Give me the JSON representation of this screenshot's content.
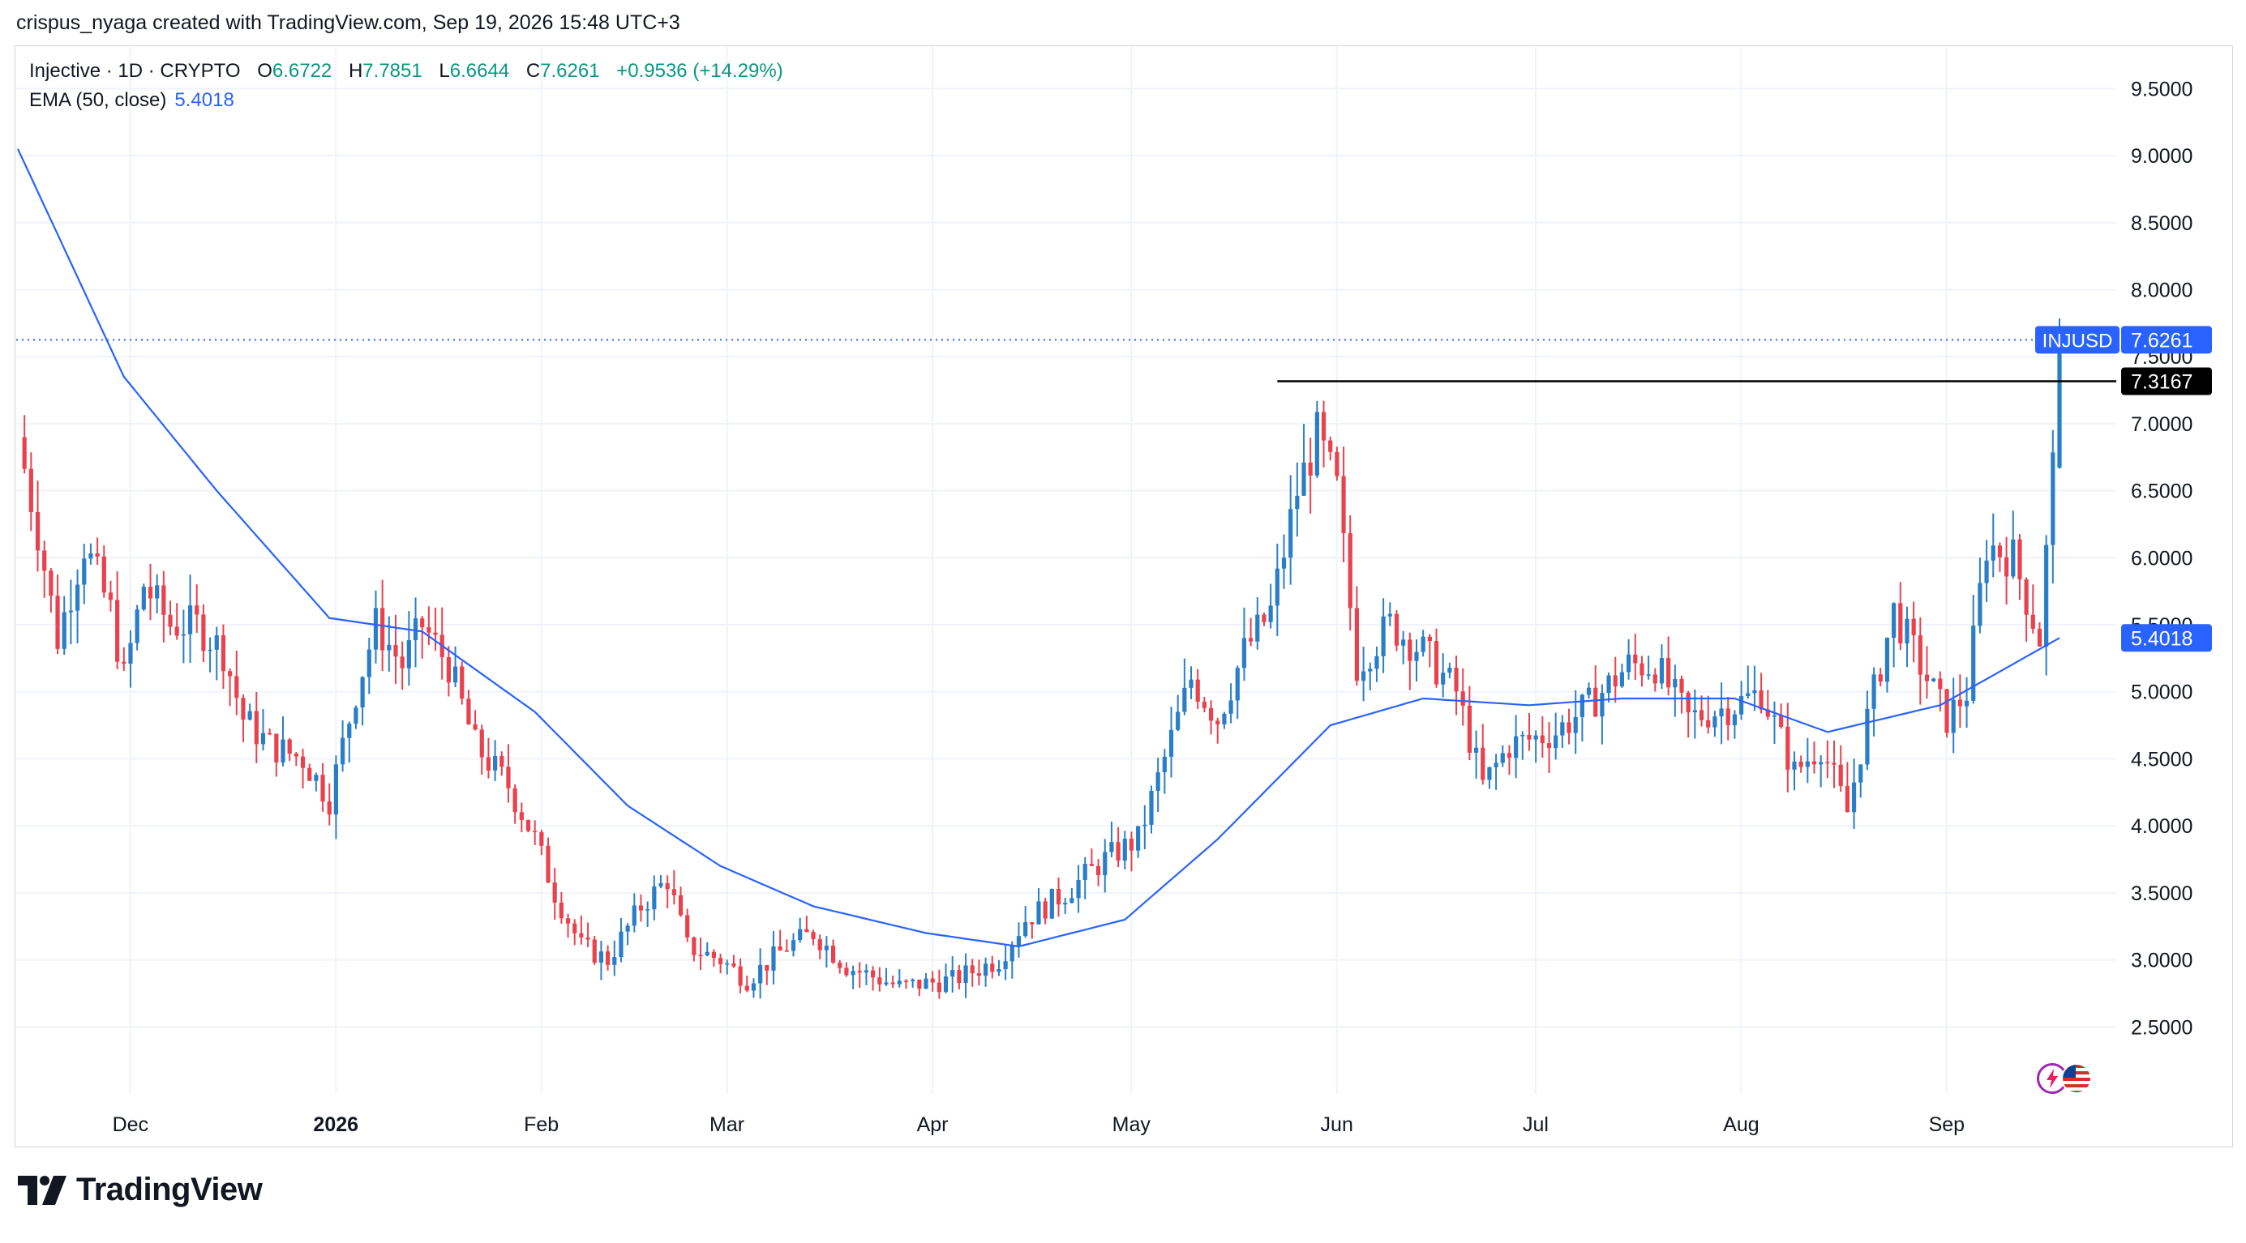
{
  "attribution": "crispus_nyaga created with TradingView.com, Sep 19, 2026 15:48 UTC+3",
  "legend": {
    "symbol": "Injective · 1D · CRYPTO",
    "open_label": "O",
    "open": "6.6722",
    "high_label": "H",
    "high": "7.7851",
    "low_label": "L",
    "low": "6.6644",
    "close_label": "C",
    "close": "7.6261",
    "change": "+0.9536 (+14.29%)",
    "ema_label": "EMA (50, close)",
    "ema_value": "5.4018"
  },
  "footer": {
    "brand": "TradingView"
  },
  "icons": [
    "tradingview-logo-icon",
    "lightning-icon",
    "us-flag-icon"
  ],
  "colors": {
    "up": "#2a7ec8",
    "down": "#e8424e",
    "ema": "#2962ff",
    "price_tag": "#2962ff",
    "level": "#000000",
    "grid": "#f0f3fa"
  },
  "chart_data": {
    "type": "candlestick",
    "symbol": "INJUSD",
    "interval": "1D",
    "y_axis_labels": [
      "9.5000",
      "9.0000",
      "8.5000",
      "8.0000",
      "7.5000",
      "7.0000",
      "6.5000",
      "6.0000",
      "5.5000",
      "5.0000",
      "4.5000",
      "4.0000",
      "3.5000",
      "3.0000",
      "2.5000"
    ],
    "ylim": [
      2.0,
      9.75
    ],
    "x_axis_labels": [
      "Dec",
      "2026",
      "Feb",
      "Mar",
      "Apr",
      "May",
      "Jun",
      "Jul",
      "Aug",
      "Sep"
    ],
    "x_range": [
      "2025-11-15",
      "2026-09-19"
    ],
    "grid": true,
    "last_price": {
      "label": "INJUSD",
      "value": 7.6261,
      "text": "7.6261"
    },
    "ema": {
      "name": "EMA (50, close)",
      "value": 5.4018,
      "text": "5.4018"
    },
    "horizontal_level": {
      "value": 7.3167,
      "text": "7.3167",
      "from_date": "2026-05-24"
    },
    "approx_path": [
      [
        "2025-11-15",
        6.9
      ],
      [
        "2025-11-18",
        6.2
      ],
      [
        "2025-11-21",
        5.4
      ],
      [
        "2025-11-25",
        6.1
      ],
      [
        "2025-11-29",
        5.6
      ],
      [
        "2025-12-01",
        5.1
      ],
      [
        "2025-12-04",
        5.8
      ],
      [
        "2025-12-08",
        5.5
      ],
      [
        "2025-12-12",
        5.5
      ],
      [
        "2025-12-16",
        5.3
      ],
      [
        "2025-12-19",
        4.8
      ],
      [
        "2025-12-23",
        4.6
      ],
      [
        "2025-12-28",
        4.5
      ],
      [
        "2026-01-01",
        4.2
      ],
      [
        "2026-01-05",
        5.0
      ],
      [
        "2026-01-08",
        5.5
      ],
      [
        "2026-01-12",
        5.2
      ],
      [
        "2026-01-15",
        5.5
      ],
      [
        "2026-01-19",
        5.2
      ],
      [
        "2026-01-23",
        4.6
      ],
      [
        "2026-01-28",
        4.3
      ],
      [
        "2026-02-01",
        3.9
      ],
      [
        "2026-02-04",
        3.5
      ],
      [
        "2026-02-08",
        3.1
      ],
      [
        "2026-02-12",
        3.0
      ],
      [
        "2026-02-17",
        3.4
      ],
      [
        "2026-02-21",
        3.6
      ],
      [
        "2026-02-24",
        3.1
      ],
      [
        "2026-03-01",
        3.0
      ],
      [
        "2026-03-05",
        2.85
      ],
      [
        "2026-03-11",
        3.1
      ],
      [
        "2026-03-15",
        3.2
      ],
      [
        "2026-03-20",
        2.95
      ],
      [
        "2026-03-28",
        2.8
      ],
      [
        "2026-04-05",
        2.85
      ],
      [
        "2026-04-12",
        3.0
      ],
      [
        "2026-04-16",
        3.3
      ],
      [
        "2026-04-22",
        3.5
      ],
      [
        "2026-04-28",
        3.75
      ],
      [
        "2026-05-03",
        3.9
      ],
      [
        "2026-05-07",
        4.5
      ],
      [
        "2026-05-11",
        5.1
      ],
      [
        "2026-05-15",
        4.8
      ],
      [
        "2026-05-19",
        5.3
      ],
      [
        "2026-05-23",
        5.6
      ],
      [
        "2026-05-27",
        6.5
      ],
      [
        "2026-05-30",
        6.9
      ],
      [
        "2026-06-02",
        6.5
      ],
      [
        "2026-06-05",
        5.2
      ],
      [
        "2026-06-10",
        5.5
      ],
      [
        "2026-06-15",
        5.3
      ],
      [
        "2026-06-20",
        5.0
      ],
      [
        "2026-06-24",
        4.3
      ],
      [
        "2026-06-28",
        4.6
      ],
      [
        "2026-07-05",
        4.7
      ],
      [
        "2026-07-10",
        4.9
      ],
      [
        "2026-07-16",
        5.2
      ],
      [
        "2026-07-20",
        5.2
      ],
      [
        "2026-07-25",
        4.8
      ],
      [
        "2026-08-01",
        4.9
      ],
      [
        "2026-08-05",
        5.0
      ],
      [
        "2026-08-10",
        4.4
      ],
      [
        "2026-08-14",
        4.6
      ],
      [
        "2026-08-18",
        4.1
      ],
      [
        "2026-08-21",
        4.8
      ],
      [
        "2026-08-25",
        5.6
      ],
      [
        "2026-08-29",
        5.2
      ],
      [
        "2026-09-02",
        4.8
      ],
      [
        "2026-09-05",
        5.0
      ],
      [
        "2026-09-08",
        6.1
      ],
      [
        "2026-09-12",
        6.0
      ],
      [
        "2026-09-16",
        5.4
      ],
      [
        "2026-09-18",
        6.67
      ],
      [
        "2026-09-19",
        7.6261
      ]
    ],
    "ema_path": [
      [
        "2025-11-15",
        9.05
      ],
      [
        "2025-12-01",
        7.35
      ],
      [
        "2025-12-15",
        6.5
      ],
      [
        "2026-01-01",
        5.55
      ],
      [
        "2026-01-15",
        5.45
      ],
      [
        "2026-02-01",
        4.85
      ],
      [
        "2026-02-15",
        4.15
      ],
      [
        "2026-03-01",
        3.7
      ],
      [
        "2026-03-15",
        3.4
      ],
      [
        "2026-04-01",
        3.2
      ],
      [
        "2026-04-15",
        3.1
      ],
      [
        "2026-05-01",
        3.3
      ],
      [
        "2026-05-15",
        3.9
      ],
      [
        "2026-06-01",
        4.75
      ],
      [
        "2026-06-15",
        4.95
      ],
      [
        "2026-07-01",
        4.9
      ],
      [
        "2026-07-15",
        4.95
      ],
      [
        "2026-08-01",
        4.95
      ],
      [
        "2026-08-15",
        4.7
      ],
      [
        "2026-09-01",
        4.9
      ],
      [
        "2026-09-19",
        5.4018
      ]
    ]
  }
}
